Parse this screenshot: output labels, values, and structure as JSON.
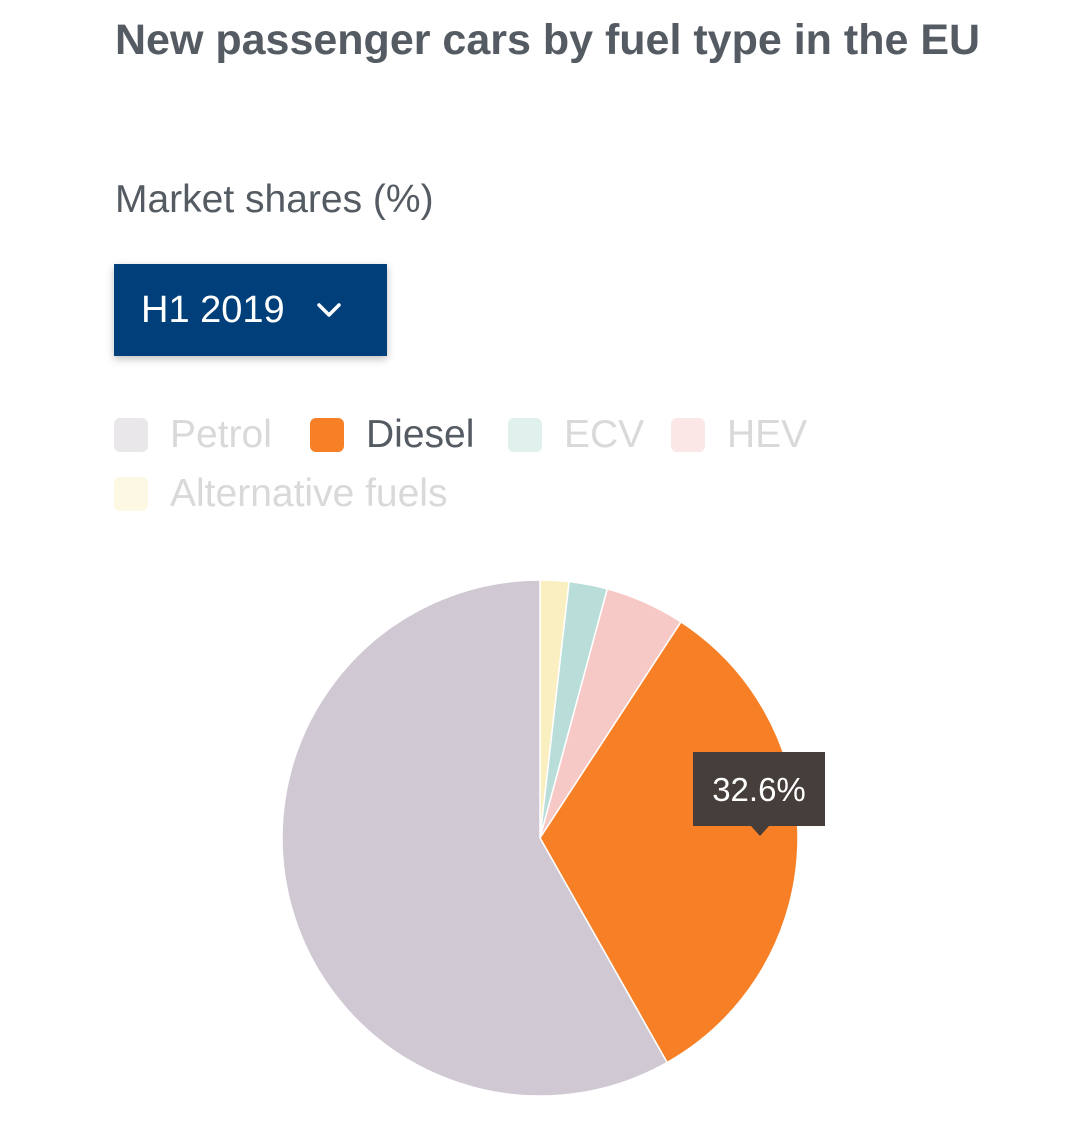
{
  "title": "New passenger cars by fuel type in the EU",
  "subtitle": "Market shares (%)",
  "period_selector": {
    "selected": "H1 2019",
    "icon": "chevron-down-icon"
  },
  "colors": {
    "petrol": "#d0c9d3",
    "diesel": "#f78026",
    "ecv": "#b9ddd8",
    "hev": "#f6c9c6",
    "alternative": "#faefc0",
    "selector_bg": "#003f7a",
    "tooltip_bg": "#453e3a"
  },
  "chart_data": {
    "type": "pie",
    "title": "New passenger cars by fuel type in the EU",
    "subtitle": "Market shares (%)",
    "period": "H1 2019",
    "slices": [
      {
        "key": "alternative",
        "label": "Alternative fuels",
        "value": 1.8,
        "highlighted": false
      },
      {
        "key": "ecv",
        "label": "ECV",
        "value": 2.4,
        "highlighted": false
      },
      {
        "key": "hev",
        "label": "HEV",
        "value": 5.0,
        "highlighted": false
      },
      {
        "key": "diesel",
        "label": "Diesel",
        "value": 32.6,
        "highlighted": true
      },
      {
        "key": "petrol",
        "label": "Petrol",
        "value": 58.2,
        "highlighted": false
      }
    ],
    "legend": [
      {
        "key": "petrol",
        "label": "Petrol",
        "active": false
      },
      {
        "key": "diesel",
        "label": "Diesel",
        "active": true
      },
      {
        "key": "ecv",
        "label": "ECV",
        "active": false
      },
      {
        "key": "hev",
        "label": "HEV",
        "active": false
      },
      {
        "key": "alternative",
        "label": "Alternative fuels",
        "active": false
      }
    ],
    "legend_position": "top-left",
    "tooltip": "32.6%"
  }
}
